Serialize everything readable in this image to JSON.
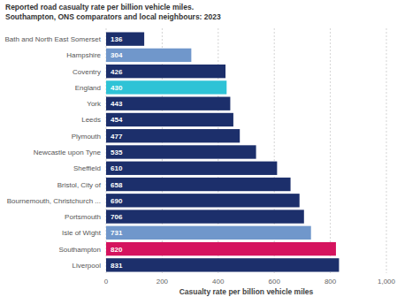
{
  "chart_data": {
    "type": "bar",
    "orientation": "horizontal",
    "title": "Reported road casualty rate per billion vehicle miles. Southampton, ONS comparators and local neighbours: 2023",
    "x_label": "Casualty rate per billion vehicle miles",
    "categories": [
      "Bath and North East Somerset",
      "Hampshire",
      "Coventry",
      "England",
      "York",
      "Leeds",
      "Plymouth",
      "Newcastle upon Tyne",
      "Sheffield",
      "Bristol, City of",
      "Bournemouth, Christchurch ...",
      "Portsmouth",
      "Isle of Wight",
      "Southampton",
      "Liverpool"
    ],
    "values": [
      136,
      304,
      426,
      430,
      443,
      454,
      477,
      535,
      610,
      658,
      690,
      706,
      731,
      820,
      831
    ],
    "colors": [
      "#1c2f6b",
      "#7097cb",
      "#1c2f6b",
      "#2ec3d6",
      "#1c2f6b",
      "#1c2f6b",
      "#1c2f6b",
      "#1c2f6b",
      "#1c2f6b",
      "#1c2f6b",
      "#1c2f6b",
      "#1c2f6b",
      "#7097cb",
      "#d5135e",
      "#1c2f6b"
    ],
    "xlim": [
      0,
      1000
    ],
    "xticks": [
      0,
      200,
      400,
      600,
      800,
      {
        "value": 1000,
        "label": "1,000"
      }
    ],
    "grid": true,
    "data_labels": true
  }
}
